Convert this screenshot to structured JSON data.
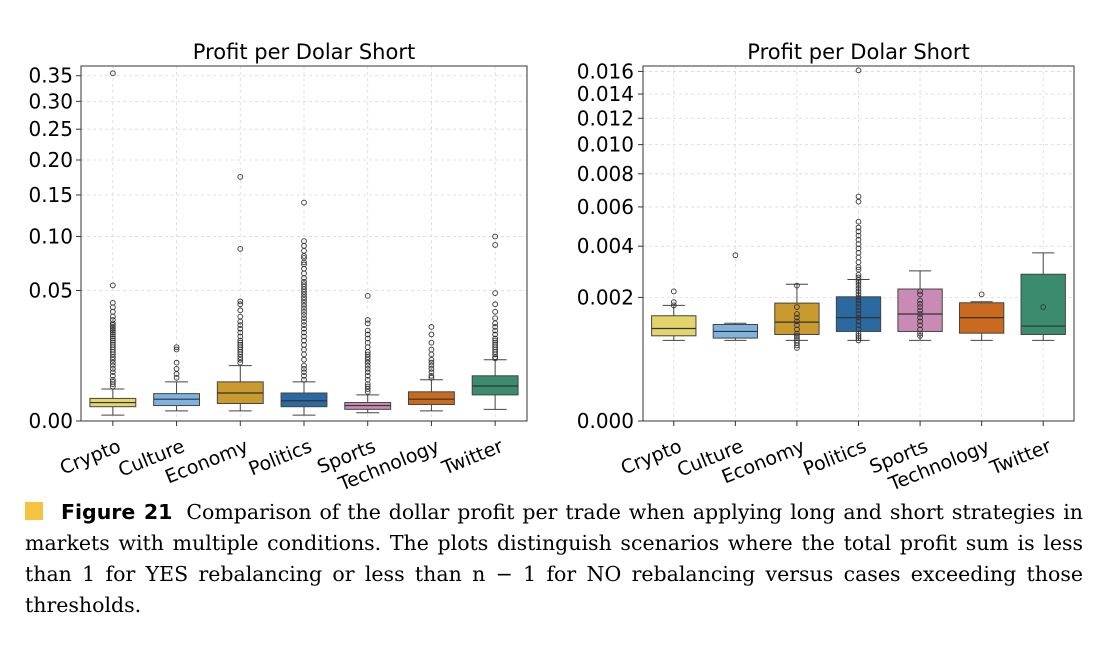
{
  "chart_data": [
    {
      "type": "box",
      "title": "Profit per Dolar Short",
      "xlabel": "",
      "ylabel": "",
      "yscale": "sqrt",
      "ylim": [
        0,
        0.37
      ],
      "yticks": [
        0.0,
        0.05,
        0.1,
        0.15,
        0.2,
        0.25,
        0.3,
        0.35
      ],
      "ytick_labels": [
        "0.00",
        "0.05",
        "0.10",
        "0.15",
        "0.20",
        "0.25",
        "0.30",
        "0.35"
      ],
      "categories": [
        "Crypto",
        "Culture",
        "Economy",
        "Politics",
        "Sports",
        "Technology",
        "Twitter"
      ],
      "colors": [
        "#e3d56b",
        "#7db3dd",
        "#c99a2e",
        "#2b6aa0",
        "#c98bb3",
        "#c96a1e",
        "#3b8c6e"
      ],
      "boxes": [
        {
          "whislo": 0.0001,
          "q1": 0.0006,
          "med": 0.001,
          "q3": 0.0015,
          "whishi": 0.003
        },
        {
          "whislo": 0.0003,
          "q1": 0.0007,
          "med": 0.0014,
          "q3": 0.0022,
          "whishi": 0.0045
        },
        {
          "whislo": 0.0003,
          "q1": 0.0009,
          "med": 0.0023,
          "q3": 0.0045,
          "whishi": 0.009
        },
        {
          "whislo": 0.0001,
          "q1": 0.0006,
          "med": 0.0012,
          "q3": 0.0023,
          "whishi": 0.0045
        },
        {
          "whislo": 0.0002,
          "q1": 0.0004,
          "med": 0.0007,
          "q3": 0.001,
          "whishi": 0.002
        },
        {
          "whislo": 0.0003,
          "q1": 0.0008,
          "med": 0.0014,
          "q3": 0.0025,
          "whishi": 0.005
        },
        {
          "whislo": 0.0004,
          "q1": 0.002,
          "med": 0.0036,
          "q3": 0.006,
          "whishi": 0.011
        }
      ],
      "outliers": [
        [
          0.355,
          0.054,
          0.041,
          0.038,
          0.035,
          0.032,
          0.03,
          0.028,
          0.027,
          0.026,
          0.025,
          0.024,
          0.023,
          0.022,
          0.021,
          0.02,
          0.019,
          0.018,
          0.017,
          0.016,
          0.015,
          0.014,
          0.013,
          0.012,
          0.011,
          0.01,
          0.009,
          0.008,
          0.007,
          0.006,
          0.005,
          0.0045,
          0.004,
          0.0035
        ],
        [
          0.0055,
          0.0065,
          0.008,
          0.01,
          0.015,
          0.016
        ],
        [
          0.175,
          0.087,
          0.042,
          0.04,
          0.036,
          0.032,
          0.029,
          0.027,
          0.025,
          0.023,
          0.021,
          0.019,
          0.018,
          0.017,
          0.016,
          0.015,
          0.014,
          0.013,
          0.012,
          0.011,
          0.01
        ],
        [
          0.14,
          0.095,
          0.09,
          0.085,
          0.08,
          0.078,
          0.074,
          0.072,
          0.068,
          0.064,
          0.06,
          0.057,
          0.055,
          0.053,
          0.051,
          0.049,
          0.047,
          0.045,
          0.043,
          0.041,
          0.039,
          0.037,
          0.035,
          0.033,
          0.031,
          0.029,
          0.027,
          0.025,
          0.023,
          0.021,
          0.019,
          0.017,
          0.015,
          0.013,
          0.011,
          0.009,
          0.008,
          0.007,
          0.006,
          0.005
        ],
        [
          0.046,
          0.03,
          0.028,
          0.024,
          0.022,
          0.02,
          0.018,
          0.016,
          0.014,
          0.013,
          0.012,
          0.011,
          0.01,
          0.009,
          0.008,
          0.007,
          0.006,
          0.005,
          0.004,
          0.0035,
          0.003,
          0.0025
        ],
        [
          0.026,
          0.022,
          0.018,
          0.015,
          0.013,
          0.011,
          0.01,
          0.009,
          0.008,
          0.007,
          0.006,
          0.0055
        ],
        [
          0.1,
          0.091,
          0.048,
          0.04,
          0.035,
          0.031,
          0.028,
          0.026,
          0.024,
          0.022,
          0.02,
          0.019,
          0.018,
          0.017,
          0.016,
          0.015,
          0.014,
          0.013,
          0.012,
          0.0115
        ]
      ]
    },
    {
      "type": "box",
      "title": "Profit per Dolar Short",
      "xlabel": "",
      "ylabel": "",
      "yscale": "sqrt",
      "ylim": [
        0,
        0.0165
      ],
      "yticks": [
        0.0,
        0.002,
        0.004,
        0.006,
        0.008,
        0.01,
        0.012,
        0.014,
        0.016
      ],
      "ytick_labels": [
        "0.000",
        "0.002",
        "0.004",
        "0.006",
        "0.008",
        "0.010",
        "0.012",
        "0.014",
        "0.016"
      ],
      "categories": [
        "Crypto",
        "Culture",
        "Economy",
        "Politics",
        "Sports",
        "Technology",
        "Twitter"
      ],
      "colors": [
        "#e3d56b",
        "#7db3dd",
        "#c99a2e",
        "#2b6aa0",
        "#c98bb3",
        "#c96a1e",
        "#3b8c6e"
      ],
      "boxes": [
        {
          "whislo": 0.00085,
          "q1": 0.00095,
          "med": 0.00112,
          "q3": 0.00145,
          "whishi": 0.00175
        },
        {
          "whislo": 0.00085,
          "q1": 0.0009,
          "med": 0.00105,
          "q3": 0.00122,
          "whishi": 0.00125
        },
        {
          "whislo": 0.00085,
          "q1": 0.00098,
          "med": 0.00128,
          "q3": 0.00182,
          "whishi": 0.00245
        },
        {
          "whislo": 0.00085,
          "q1": 0.00105,
          "med": 0.0014,
          "q3": 0.00202,
          "whishi": 0.00262
        },
        {
          "whislo": 0.00085,
          "q1": 0.00105,
          "med": 0.0015,
          "q3": 0.00228,
          "whishi": 0.00295
        },
        {
          "whislo": 0.00085,
          "q1": 0.00101,
          "med": 0.0014,
          "q3": 0.00183,
          "whishi": 0.00186
        },
        {
          "whislo": 0.00085,
          "q1": 0.00098,
          "med": 0.00118,
          "q3": 0.00282,
          "whishi": 0.0037
        }
      ],
      "outliers": [
        [
          0.0022,
          0.00185,
          0.00175
        ],
        [
          0.0036
        ],
        [
          0.0024,
          0.0017,
          0.0015,
          0.0014,
          0.0013,
          0.0012,
          0.0011,
          0.001,
          0.00095,
          0.0009,
          0.00085,
          0.0008,
          0.00075,
          0.0007
        ],
        [
          0.0161,
          0.0066,
          0.0063,
          0.0052,
          0.0049,
          0.0047,
          0.0045,
          0.0043,
          0.0041,
          0.0039,
          0.0037,
          0.0035,
          0.0033,
          0.0031,
          0.003,
          0.0028,
          0.0027,
          0.0026,
          0.0025,
          0.0024,
          0.0023,
          0.0022,
          0.0021,
          0.002,
          0.0019,
          0.0018,
          0.0017,
          0.0016,
          0.0015,
          0.0014,
          0.0013,
          0.0012,
          0.0011,
          0.001,
          0.00095,
          0.0009,
          0.00085
        ],
        [
          0.0022,
          0.0021,
          0.0019,
          0.0018,
          0.0017,
          0.0016,
          0.0015,
          0.0014,
          0.0013,
          0.0012,
          0.0011,
          0.001,
          0.00095
        ],
        [
          0.0021
        ],
        [
          0.0017
        ]
      ]
    }
  ],
  "caption": {
    "label": "Figure 21",
    "text": "Comparison of the dollar profit per trade when applying long and short strategies in markets with multiple conditions. The plots distinguish scenarios where the total profit sum is less than 1 for YES rebalancing or less than n − 1 for NO rebalancing versus cases exceeding those thresholds."
  }
}
